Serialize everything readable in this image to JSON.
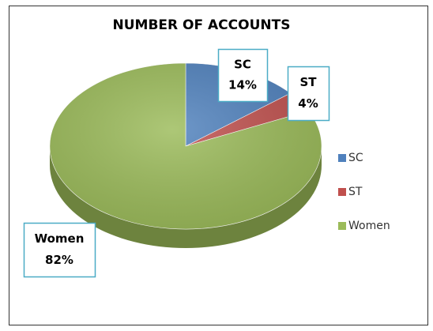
{
  "chart_data": {
    "type": "pie",
    "title": "NUMBER OF ACCOUNTS",
    "categories": [
      "SC",
      "ST",
      "Women"
    ],
    "values": [
      14,
      4,
      82
    ],
    "value_labels": [
      "14%",
      "4%",
      "82%"
    ],
    "colors": [
      "#4f81bd",
      "#c0504d",
      "#9bbb59"
    ],
    "legend": "right"
  }
}
